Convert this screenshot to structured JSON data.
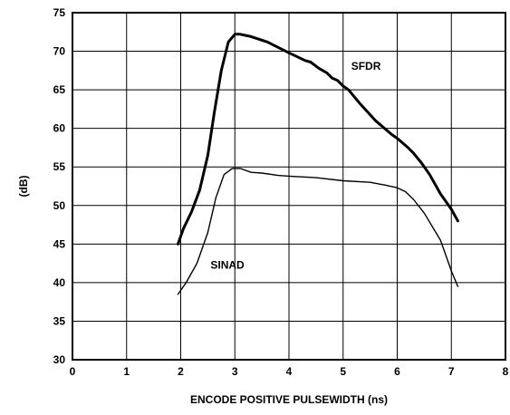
{
  "chart_data": {
    "type": "line",
    "xlabel": "ENCODE POSITIVE PULSEWIDTH (ns)",
    "ylabel": "(dB)",
    "xlim": [
      0,
      8
    ],
    "ylim": [
      30,
      75
    ],
    "x_ticks": [
      "0",
      "1",
      "2",
      "3",
      "4",
      "5",
      "6",
      "7",
      "8"
    ],
    "y_ticks": [
      "30",
      "35",
      "40",
      "45",
      "50",
      "55",
      "60",
      "65",
      "70",
      "75"
    ],
    "grid": true,
    "legend": "none",
    "series": [
      {
        "name": "SFDR",
        "line_width": "thick",
        "x": [
          1.95,
          2.05,
          2.2,
          2.35,
          2.5,
          2.62,
          2.75,
          2.88,
          3.0,
          3.1,
          3.3,
          3.6,
          4.0,
          4.3,
          4.4,
          4.55,
          4.7,
          4.8,
          4.9,
          5.0,
          5.1,
          5.3,
          5.6,
          5.9,
          6.0,
          6.2,
          6.3,
          6.45,
          6.6,
          6.8,
          7.0,
          7.12
        ],
        "values": [
          45.0,
          47.0,
          49.2,
          52.0,
          56.5,
          62.0,
          67.5,
          71.2,
          72.2,
          72.2,
          71.9,
          71.2,
          69.8,
          68.8,
          68.6,
          67.8,
          67.2,
          66.5,
          66.2,
          65.5,
          65.0,
          63.3,
          61.0,
          59.2,
          58.7,
          57.5,
          56.8,
          55.5,
          54.0,
          51.5,
          49.5,
          48.0
        ]
      },
      {
        "name": "SINAD",
        "line_width": "thin",
        "x": [
          1.95,
          2.1,
          2.3,
          2.5,
          2.65,
          2.8,
          2.95,
          3.1,
          3.3,
          3.5,
          3.8,
          4.0,
          4.5,
          5.0,
          5.5,
          5.8,
          6.0,
          6.15,
          6.3,
          6.5,
          6.8,
          7.0,
          7.12
        ],
        "values": [
          38.5,
          40.0,
          42.5,
          46.5,
          51.0,
          54.0,
          54.8,
          54.8,
          54.3,
          54.2,
          53.9,
          53.8,
          53.6,
          53.2,
          53.0,
          52.6,
          52.3,
          51.8,
          50.8,
          49.0,
          45.5,
          41.5,
          39.5
        ]
      }
    ],
    "annotations": [
      {
        "text": "SFDR",
        "x": 5.15,
        "y": 67.6
      },
      {
        "text": "SINAD",
        "x": 2.55,
        "y": 41.8
      }
    ]
  }
}
